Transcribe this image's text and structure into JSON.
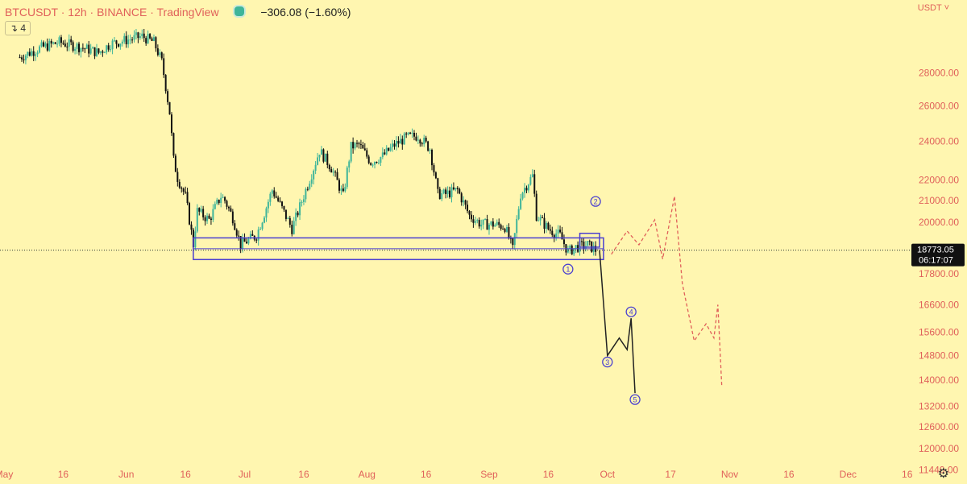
{
  "header": {
    "symbol_line": "BTCUSDT · 12h · BINANCE · TradingView",
    "change": "−306.08 (−1.60%)",
    "interval_badge": "↴ 4",
    "currency": "USDT ˅"
  },
  "colors": {
    "background": "#fff6b0",
    "up": "#3fb59a",
    "down": "#111111",
    "zone": "#4a3fd0",
    "projection": "#e0605a",
    "path": "#222222",
    "axis_text": "#e0605a"
  },
  "chart_data": {
    "type": "candlestick",
    "title": "BTCUSDT, 12h, BINANCE, TradingView",
    "y_scale": "log",
    "ylim": [
      11100,
      33000
    ],
    "y_ticks": [
      11440,
      12000,
      12600,
      13200,
      14000,
      14800,
      15600,
      16600,
      17800,
      20000,
      21000,
      22000,
      24000,
      26000,
      28000
    ],
    "y_tick_labels": [
      "11440.00",
      "12000.00",
      "12600.00",
      "13200.00",
      "14000.00",
      "14800.00",
      "15600.00",
      "16600.00",
      "17800.00",
      "20000.00",
      "21000.00",
      "22000.00",
      "24000.00",
      "26000.00",
      "28000.00"
    ],
    "x_range": [
      "2022-05-01",
      "2022-12-23"
    ],
    "x_ticks": [
      {
        "label": "May",
        "date": "2022-05-01"
      },
      {
        "label": "16",
        "date": "2022-05-16"
      },
      {
        "label": "Jun",
        "date": "2022-06-01"
      },
      {
        "label": "16",
        "date": "2022-06-16"
      },
      {
        "label": "Jul",
        "date": "2022-07-01"
      },
      {
        "label": "16",
        "date": "2022-07-16"
      },
      {
        "label": "Aug",
        "date": "2022-08-01"
      },
      {
        "label": "16",
        "date": "2022-08-16"
      },
      {
        "label": "Sep",
        "date": "2022-09-01"
      },
      {
        "label": "16",
        "date": "2022-09-16"
      },
      {
        "label": "Oct",
        "date": "2022-10-01"
      },
      {
        "label": "17",
        "date": "2022-10-17"
      },
      {
        "label": "Nov",
        "date": "2022-11-01"
      },
      {
        "label": "16",
        "date": "2022-11-16"
      },
      {
        "label": "Dec",
        "date": "2022-12-01"
      },
      {
        "label": "16",
        "date": "2022-12-16"
      }
    ],
    "price_path": [
      [
        "2022-05-05",
        29000
      ],
      [
        "2022-05-10",
        29600
      ],
      [
        "2022-05-15",
        30000
      ],
      [
        "2022-05-20",
        29700
      ],
      [
        "2022-05-25",
        29300
      ],
      [
        "2022-05-28",
        29900
      ],
      [
        "2022-06-05",
        30400
      ],
      [
        "2022-06-08",
        30000
      ],
      [
        "2022-06-10",
        28700
      ],
      [
        "2022-06-12",
        25600
      ],
      [
        "2022-06-13",
        23000
      ],
      [
        "2022-06-14",
        22100
      ],
      [
        "2022-06-16",
        21200
      ],
      [
        "2022-06-18",
        19000
      ],
      [
        "2022-06-19",
        20500
      ],
      [
        "2022-06-22",
        20100
      ],
      [
        "2022-06-25",
        21200
      ],
      [
        "2022-06-26",
        21000
      ],
      [
        "2022-06-28",
        20200
      ],
      [
        "2022-06-30",
        19000
      ],
      [
        "2022-07-02",
        19200
      ],
      [
        "2022-07-04",
        19400
      ],
      [
        "2022-07-06",
        20400
      ],
      [
        "2022-07-08",
        21500
      ],
      [
        "2022-07-10",
        20800
      ],
      [
        "2022-07-13",
        19700
      ],
      [
        "2022-07-15",
        20700
      ],
      [
        "2022-07-18",
        22300
      ],
      [
        "2022-07-20",
        23500
      ],
      [
        "2022-07-23",
        22600
      ],
      [
        "2022-07-26",
        21200
      ],
      [
        "2022-07-28",
        23700
      ],
      [
        "2022-07-30",
        23800
      ],
      [
        "2022-08-02",
        22900
      ],
      [
        "2022-08-05",
        23200
      ],
      [
        "2022-08-08",
        23800
      ],
      [
        "2022-08-11",
        24200
      ],
      [
        "2022-08-14",
        24300
      ],
      [
        "2022-08-17",
        23600
      ],
      [
        "2022-08-19",
        21300
      ],
      [
        "2022-08-21",
        21300
      ],
      [
        "2022-08-24",
        21500
      ],
      [
        "2022-08-27",
        20300
      ],
      [
        "2022-08-30",
        19900
      ],
      [
        "2022-09-02",
        19900
      ],
      [
        "2022-09-05",
        19800
      ],
      [
        "2022-09-07",
        18800
      ],
      [
        "2022-09-09",
        21300
      ],
      [
        "2022-09-12",
        22200
      ],
      [
        "2022-09-13",
        20300
      ],
      [
        "2022-09-16",
        19700
      ],
      [
        "2022-09-19",
        19400
      ],
      [
        "2022-09-21",
        18700
      ],
      [
        "2022-09-23",
        18900
      ],
      [
        "2022-09-26",
        19000
      ],
      [
        "2022-09-28",
        18773
      ]
    ],
    "support_zone": {
      "from": "2022-06-18",
      "to": "2022-09-30",
      "high": 19300,
      "low": 18380
    },
    "small_box": {
      "from": "2022-09-24",
      "to": "2022-09-29",
      "high": 19500,
      "low": 18900
    },
    "wave_path": [
      [
        "2022-09-29",
        18773
      ],
      [
        "2022-10-01",
        14800
      ],
      [
        "2022-10-04",
        15400
      ],
      [
        "2022-10-06",
        15000
      ],
      [
        "2022-10-07",
        16100
      ],
      [
        "2022-10-08",
        13600
      ]
    ],
    "wave_labels": [
      {
        "label": "1",
        "date": "2022-09-21",
        "price": 18250,
        "pos": "below"
      },
      {
        "label": "2",
        "date": "2022-09-28",
        "price": 20650,
        "pos": "above"
      },
      {
        "label": "3",
        "date": "2022-10-01",
        "price": 14800,
        "pos": "below"
      },
      {
        "label": "4",
        "date": "2022-10-07",
        "price": 16100,
        "pos": "above"
      },
      {
        "label": "5",
        "date": "2022-10-08",
        "price": 13600,
        "pos": "below"
      }
    ],
    "projection_path": [
      [
        "2022-10-02",
        18600
      ],
      [
        "2022-10-06",
        19600
      ],
      [
        "2022-10-09",
        19000
      ],
      [
        "2022-10-13",
        20100
      ],
      [
        "2022-10-15",
        18400
      ],
      [
        "2022-10-18",
        21200
      ],
      [
        "2022-10-20",
        17400
      ],
      [
        "2022-10-23",
        15300
      ],
      [
        "2022-10-26",
        15900
      ],
      [
        "2022-10-28",
        15400
      ],
      [
        "2022-10-29",
        16600
      ],
      [
        "2022-10-30",
        13800
      ]
    ],
    "last_price": 18773,
    "last_price_label": "18773.05",
    "countdown": "06:17:07"
  }
}
